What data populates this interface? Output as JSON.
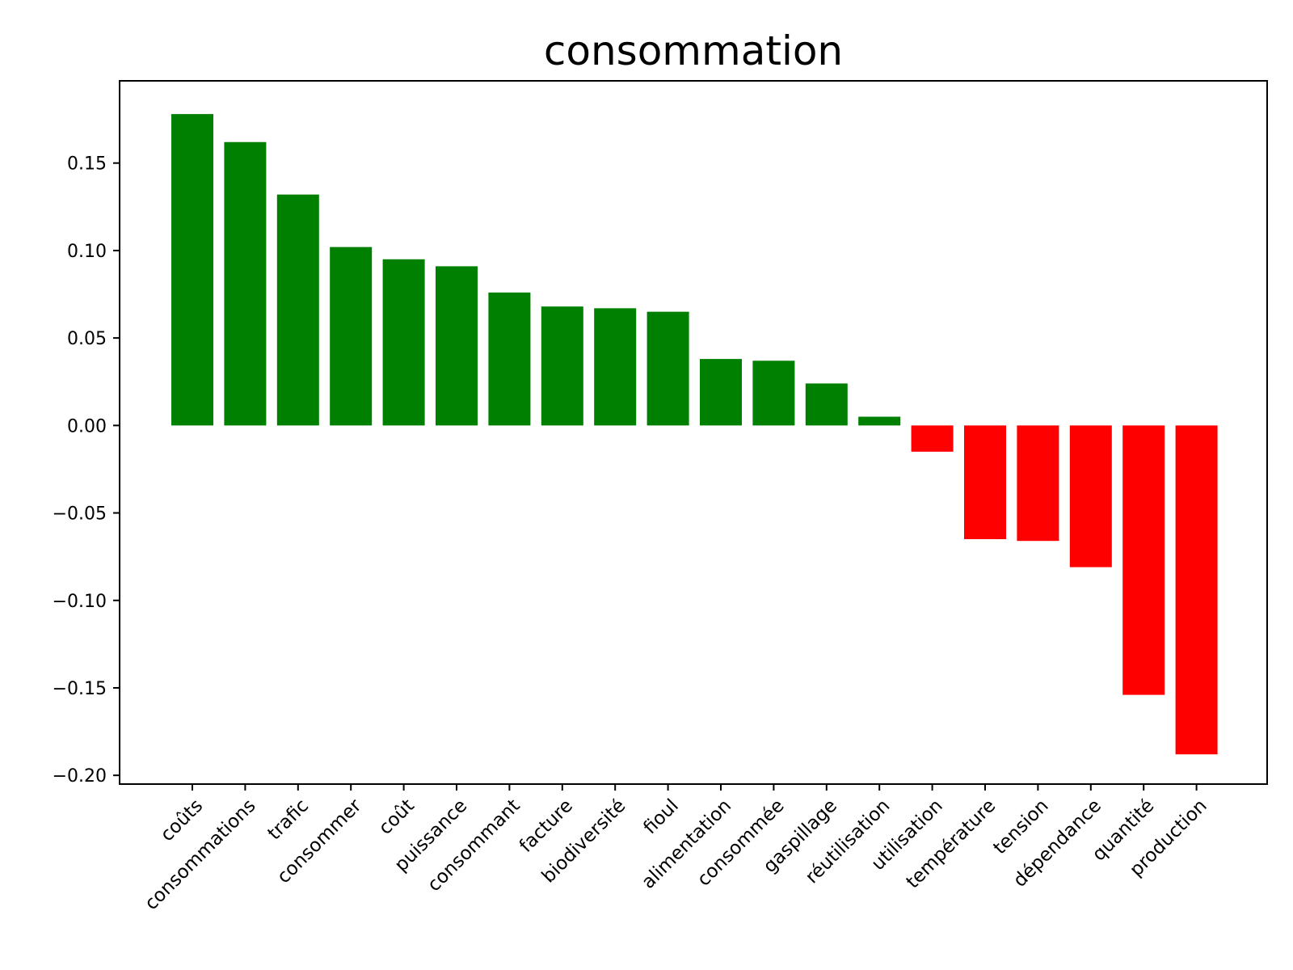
{
  "chart_data": {
    "type": "bar",
    "title": "consommation",
    "xlabel": "",
    "ylabel": "",
    "ylim": [
      -0.205,
      0.197
    ],
    "yticks": [
      0.15,
      0.1,
      0.05,
      0.0,
      -0.05,
      -0.1,
      -0.15,
      -0.2
    ],
    "ytick_labels": [
      "0.15",
      "0.10",
      "0.05",
      "0.00",
      "−0.05",
      "−0.10",
      "−0.15",
      "−0.20"
    ],
    "grid": false,
    "positive_color": "#008000",
    "negative_color": "#ff0000",
    "categories": [
      "coûts",
      "consommations",
      "trafic",
      "consommer",
      "coût",
      "puissance",
      "consommant",
      "facture",
      "biodiversité",
      "fioul",
      "alimentation",
      "consommée",
      "gaspillage",
      "réutilisation",
      "utilisation",
      "température",
      "tension",
      "dépendance",
      "quantité",
      "production"
    ],
    "values": [
      0.178,
      0.162,
      0.132,
      0.102,
      0.095,
      0.091,
      0.076,
      0.068,
      0.067,
      0.065,
      0.038,
      0.037,
      0.024,
      0.005,
      -0.015,
      -0.065,
      -0.066,
      -0.081,
      -0.154,
      -0.188
    ]
  }
}
